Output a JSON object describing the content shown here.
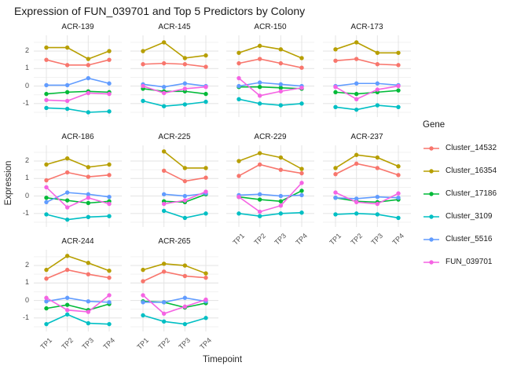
{
  "chart_data": {
    "type": "line",
    "title": "Expression of FUN_039701 and Top 5 Predictors by Colony",
    "xlabel": "Timepoint",
    "ylabel": "Expression",
    "legend_title": "Gene",
    "legend_position": "right",
    "grid": true,
    "x_categories": [
      "TP1",
      "TP2",
      "TP3",
      "TP4"
    ],
    "y_ticks": [
      2,
      1,
      0,
      -1
    ],
    "y_minor_ticks": [
      2.5,
      1.5,
      0.5,
      -0.5,
      -1.5
    ],
    "ylim": [
      -1.77,
      2.9
    ],
    "series": [
      {
        "name": "Cluster_14532",
        "color": "#F8766D"
      },
      {
        "name": "Cluster_16354",
        "color": "#B79F00"
      },
      {
        "name": "Cluster_17186",
        "color": "#00BA38"
      },
      {
        "name": "Cluster_3109",
        "color": "#00BFC4"
      },
      {
        "name": "Cluster_5516",
        "color": "#619CFF"
      },
      {
        "name": "FUN_039701",
        "color": "#F564E3"
      }
    ],
    "facets": [
      {
        "name": "ACR-139",
        "values": {
          "Cluster_14532": [
            1.5,
            1.2,
            1.2,
            1.5
          ],
          "Cluster_16354": [
            2.2,
            2.2,
            1.55,
            2.0
          ],
          "Cluster_17186": [
            -0.45,
            -0.35,
            -0.3,
            -0.35
          ],
          "Cluster_3109": [
            -1.25,
            -1.3,
            -1.5,
            -1.45
          ],
          "Cluster_5516": [
            0.05,
            0.05,
            0.45,
            0.15
          ],
          "FUN_039701": [
            -0.8,
            -0.85,
            -0.4,
            -0.45
          ]
        }
      },
      {
        "name": "ACR-145",
        "values": {
          "Cluster_14532": [
            1.25,
            1.3,
            1.25,
            1.1
          ],
          "Cluster_16354": [
            2.0,
            2.5,
            1.6,
            1.75
          ],
          "Cluster_17186": [
            -0.15,
            -0.3,
            -0.3,
            -0.45
          ],
          "Cluster_3109": [
            -0.85,
            -1.15,
            -1.05,
            -0.9
          ],
          "Cluster_5516": [
            0.1,
            -0.05,
            0.15,
            0.0
          ],
          "FUN_039701": [
            0.0,
            -0.4,
            -0.15,
            -0.05
          ]
        }
      },
      {
        "name": "ACR-150",
        "values": {
          "Cluster_14532": [
            1.3,
            1.55,
            1.3,
            1.05
          ],
          "Cluster_16354": [
            1.9,
            2.3,
            2.1,
            1.6
          ],
          "Cluster_17186": [
            -0.05,
            -0.05,
            -0.1,
            -0.15
          ],
          "Cluster_3109": [
            -0.75,
            -1.0,
            -1.1,
            -1.0
          ],
          "Cluster_5516": [
            0.0,
            0.2,
            0.1,
            0.0
          ],
          "FUN_039701": [
            0.45,
            -0.55,
            -0.3,
            -0.1
          ]
        }
      },
      {
        "name": "ACR-173",
        "values": {
          "Cluster_14532": [
            1.45,
            1.55,
            1.25,
            1.2
          ],
          "Cluster_16354": [
            2.1,
            2.5,
            1.9,
            1.9
          ],
          "Cluster_17186": [
            -0.35,
            -0.45,
            -0.35,
            -0.25
          ],
          "Cluster_3109": [
            -1.2,
            -1.35,
            -1.1,
            -1.2
          ],
          "Cluster_5516": [
            0.0,
            0.15,
            0.15,
            0.05
          ],
          "FUN_039701": [
            -0.05,
            -0.75,
            -0.2,
            0.0
          ]
        }
      },
      {
        "name": "ACR-186",
        "values": {
          "Cluster_14532": [
            0.9,
            1.35,
            1.1,
            1.2
          ],
          "Cluster_16354": [
            1.8,
            2.15,
            1.65,
            1.8
          ],
          "Cluster_17186": [
            -0.1,
            -0.25,
            -0.4,
            -0.3
          ],
          "Cluster_3109": [
            -1.05,
            -1.35,
            -1.2,
            -1.15
          ],
          "Cluster_5516": [
            -0.35,
            0.2,
            0.1,
            -0.05
          ],
          "FUN_039701": [
            0.5,
            -0.65,
            -0.1,
            -0.45
          ]
        }
      },
      {
        "name": "ACR-225",
        "values": {
          "Cluster_14532": [
            null,
            1.45,
            0.85,
            1.05
          ],
          "Cluster_16354": [
            null,
            2.55,
            1.6,
            1.6
          ],
          "Cluster_17186": [
            null,
            -0.3,
            -0.35,
            0.1
          ],
          "Cluster_3109": [
            null,
            -0.85,
            -1.25,
            -1.0
          ],
          "Cluster_5516": [
            null,
            0.1,
            0.0,
            0.15
          ],
          "FUN_039701": [
            null,
            -0.45,
            -0.25,
            0.25
          ]
        }
      },
      {
        "name": "ACR-229",
        "values": {
          "Cluster_14532": [
            1.15,
            1.8,
            1.5,
            1.3
          ],
          "Cluster_16354": [
            2.0,
            2.45,
            2.2,
            1.55
          ],
          "Cluster_17186": [
            -0.05,
            -0.2,
            -0.3,
            0.3
          ],
          "Cluster_3109": [
            -1.0,
            -1.15,
            -1.0,
            -0.95
          ],
          "Cluster_5516": [
            0.05,
            0.1,
            0.0,
            0.05
          ],
          "FUN_039701": [
            -0.05,
            -0.9,
            -0.55,
            0.75
          ]
        }
      },
      {
        "name": "ACR-237",
        "values": {
          "Cluster_14532": [
            1.25,
            1.85,
            1.6,
            1.2
          ],
          "Cluster_16354": [
            1.6,
            2.35,
            2.2,
            1.7
          ],
          "Cluster_17186": [
            -0.1,
            -0.3,
            -0.35,
            -0.2
          ],
          "Cluster_3109": [
            -1.05,
            -1.0,
            -1.05,
            -1.25
          ],
          "Cluster_5516": [
            -0.1,
            -0.15,
            -0.05,
            -0.1
          ],
          "FUN_039701": [
            0.2,
            -0.35,
            -0.45,
            0.15
          ]
        }
      },
      {
        "name": "ACR-244",
        "values": {
          "Cluster_14532": [
            1.25,
            1.75,
            1.5,
            1.3
          ],
          "Cluster_16354": [
            1.75,
            2.55,
            2.15,
            1.7
          ],
          "Cluster_17186": [
            -0.45,
            -0.25,
            -0.55,
            -0.2
          ],
          "Cluster_3109": [
            -1.35,
            -0.8,
            -1.3,
            -1.35
          ],
          "Cluster_5516": [
            -0.05,
            0.15,
            -0.05,
            -0.1
          ],
          "FUN_039701": [
            0.15,
            -0.55,
            -0.65,
            0.3
          ]
        }
      },
      {
        "name": "ACR-265",
        "values": {
          "Cluster_14532": [
            1.1,
            1.65,
            1.4,
            1.3
          ],
          "Cluster_16354": [
            1.75,
            2.1,
            2.0,
            1.55
          ],
          "Cluster_17186": [
            -0.05,
            -0.1,
            -0.4,
            -0.15
          ],
          "Cluster_3109": [
            -0.85,
            -1.2,
            -1.35,
            -1.0
          ],
          "Cluster_5516": [
            -0.1,
            -0.1,
            0.15,
            -0.05
          ],
          "FUN_039701": [
            0.3,
            -0.75,
            -0.35,
            0.05
          ]
        }
      }
    ]
  }
}
